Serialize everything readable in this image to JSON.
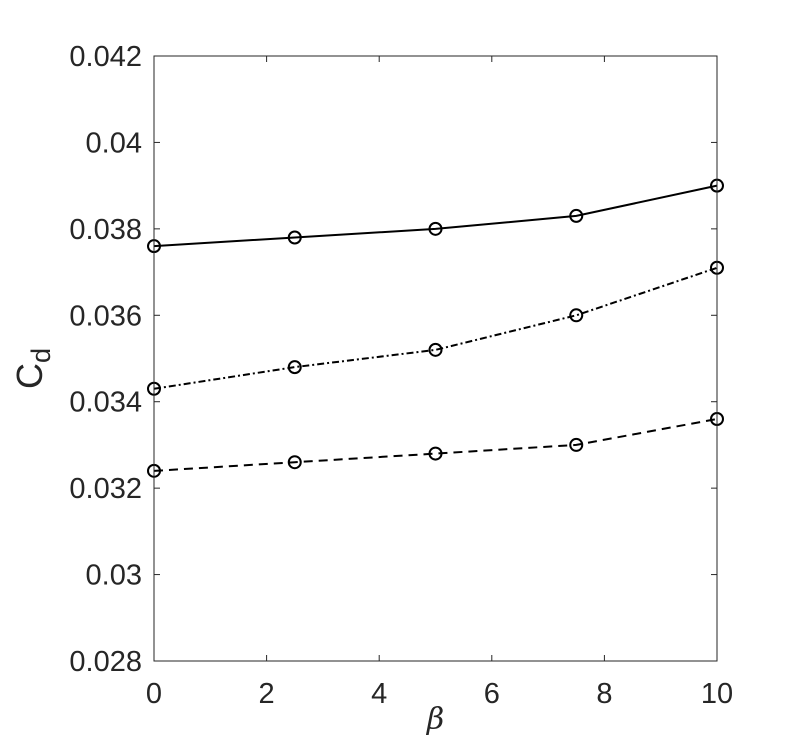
{
  "chart_data": {
    "type": "line",
    "title": "",
    "xlabel": "β",
    "ylabel": "C",
    "ylabel_subscript": "d",
    "x": [
      0,
      2.5,
      5,
      7.5,
      10
    ],
    "xlim": [
      0,
      10
    ],
    "ylim": [
      0.028,
      0.042
    ],
    "xticks": [
      0,
      2,
      4,
      6,
      8,
      10
    ],
    "xtick_labels": [
      "0",
      "2",
      "4",
      "6",
      "8",
      "10"
    ],
    "yticks": [
      0.028,
      0.03,
      0.032,
      0.034,
      0.036,
      0.038,
      0.04,
      0.042
    ],
    "ytick_labels": [
      "0.028",
      "0.03",
      "0.032",
      "0.034",
      "0.036",
      "0.038",
      "0.04",
      "0.042"
    ],
    "grid": false,
    "legend": "none",
    "series": [
      {
        "values": [
          0.0376,
          0.0378,
          0.038,
          0.0383,
          0.039
        ],
        "line_style": "solid",
        "marker": "circle",
        "color": "#000000"
      },
      {
        "values": [
          0.0343,
          0.0348,
          0.0352,
          0.036,
          0.0371
        ],
        "line_style": "dash-dot",
        "marker": "circle",
        "color": "#000000"
      },
      {
        "values": [
          0.0324,
          0.0326,
          0.0328,
          0.033,
          0.0336
        ],
        "line_style": "dashed",
        "marker": "circle",
        "color": "#000000"
      }
    ]
  }
}
